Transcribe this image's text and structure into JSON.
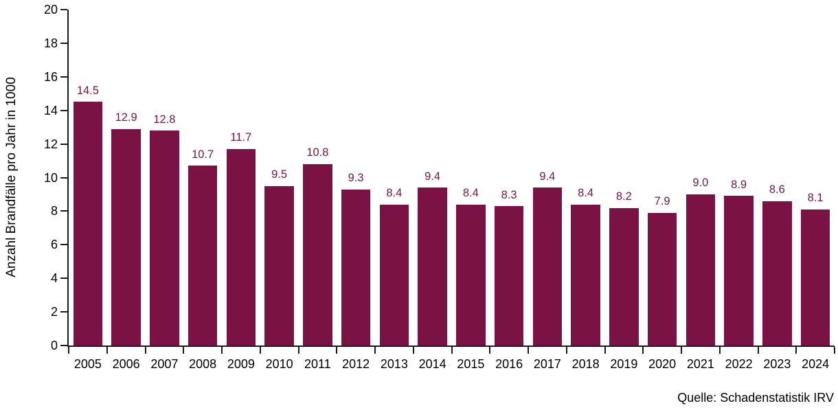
{
  "chart_data": {
    "type": "bar",
    "title": "",
    "xlabel": "",
    "ylabel": "Anzahl Brandfälle pro Jahr in 1000",
    "categories": [
      "2005",
      "2006",
      "2007",
      "2008",
      "2009",
      "2010",
      "2011",
      "2012",
      "2013",
      "2014",
      "2015",
      "2016",
      "2017",
      "2018",
      "2019",
      "2020",
      "2021",
      "2022",
      "2023",
      "2024"
    ],
    "values": [
      14.5,
      12.9,
      12.8,
      10.7,
      11.7,
      9.5,
      10.8,
      9.3,
      8.4,
      9.4,
      8.4,
      8.3,
      9.4,
      8.4,
      8.2,
      7.9,
      9.0,
      8.9,
      8.6,
      8.1
    ],
    "ylim": [
      0,
      20
    ],
    "yticks": [
      0,
      2,
      4,
      6,
      8,
      10,
      12,
      14,
      16,
      18,
      20
    ],
    "grid": false,
    "legend": "none",
    "value_labels_shown": true,
    "value_label_decimals": 1,
    "bar_color": "#7A1343",
    "value_label_color": "#7A1343",
    "axis_color": "#1a1a1a",
    "text_color": "#000000"
  },
  "source_note": "Quelle: Schadenstatistik IRV"
}
